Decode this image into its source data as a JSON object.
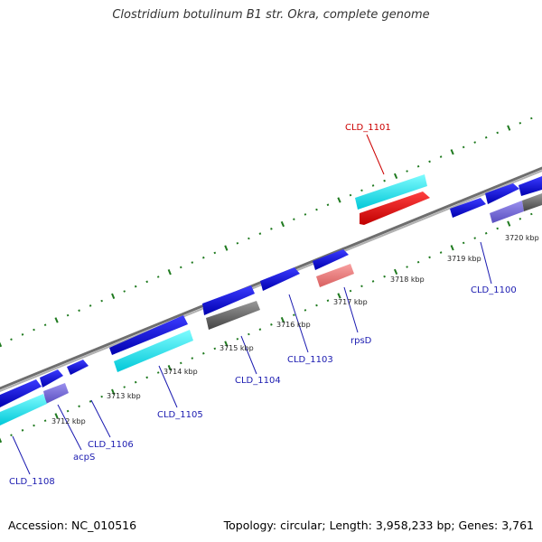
{
  "title": "Clostridium botulinum B1 str. Okra, complete genome",
  "footer": {
    "accession": "Accession: NC_010516",
    "stats": "Topology: circular; Length: 3,958,233 bp; Genes: 3,761"
  },
  "colors": {
    "backbone": "#8a8a8a",
    "tick": "#1f7a1f",
    "cds": "#1010e0",
    "cds_pale": "#7a6fd8",
    "rna": "#00e8e8",
    "gray": "#666666",
    "highlight": "#ee1111",
    "pink": "#ee8080",
    "label_blue": "#1a1ab0",
    "label_red": "#cc0000"
  },
  "ruler_labels": [
    "3712 kbp",
    "3713 kbp",
    "3714 kbp",
    "3715 kbp",
    "3716 kbp",
    "3717 kbp",
    "3718 kbp",
    "3719 kbp",
    "3720 kbp"
  ],
  "gene_labels": [
    "CLD_1101",
    "CLD_1100",
    "rpsD",
    "CLD_1103",
    "CLD_1104",
    "CLD_1105",
    "CLD_1106",
    "acpS",
    "CLD_1108"
  ]
}
